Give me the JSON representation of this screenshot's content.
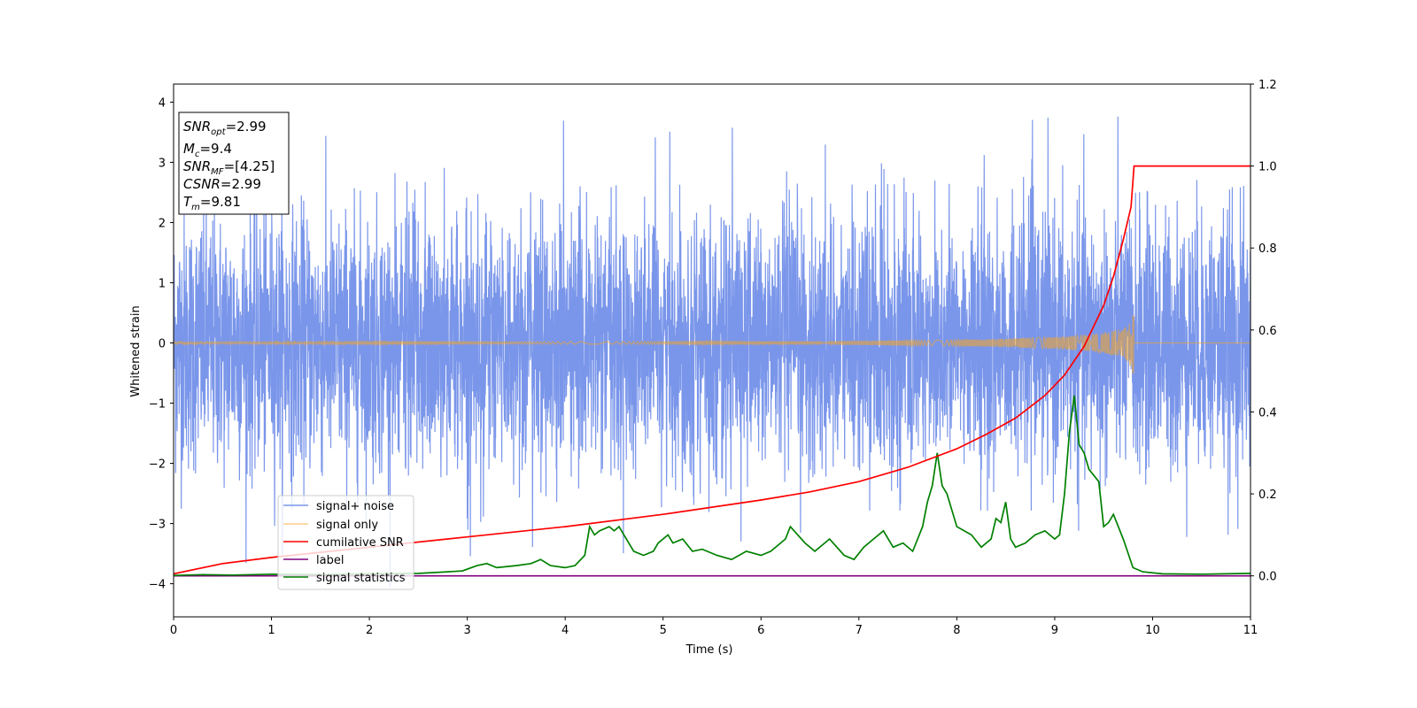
{
  "chart_data": {
    "type": "line",
    "title": "",
    "xlabel": "Time (s)",
    "ylabel": "Whitened strain",
    "y2label": "",
    "xlim": [
      0,
      11
    ],
    "ylim": [
      -4.55,
      4.3
    ],
    "y2lim": [
      -0.1,
      1.2
    ],
    "grid": false,
    "legend_position": "lower-left",
    "x_ticks": [
      "0",
      "1",
      "2",
      "3",
      "4",
      "5",
      "6",
      "7",
      "8",
      "9",
      "10",
      "11"
    ],
    "y_ticks": [
      "−4",
      "−3",
      "−2",
      "−1",
      "0",
      "1",
      "2",
      "3",
      "4"
    ],
    "y2_ticks": [
      "0.0",
      "0.2",
      "0.4",
      "0.6",
      "0.8",
      "1.0",
      "1.2"
    ],
    "annotation": {
      "snr_opt": "=2.99",
      "mc": "=9.4",
      "snr_mf": "=[4.25]",
      "csnr": "=2.99",
      "tm": "=9.81"
    },
    "series": [
      {
        "name": "signal+ noise",
        "axis": "left",
        "color": "#4169e1",
        "description_values": {
          "x_range": [
            0,
            11
          ],
          "y_typical_range": [
            -2,
            2.2
          ],
          "y_max": 3.92,
          "y_min": -4.18
        }
      },
      {
        "name": "signal only",
        "axis": "left",
        "color": "#f5a623",
        "x": [
          0,
          2,
          4,
          6,
          7,
          8,
          8.5,
          9,
          9.3,
          9.5,
          9.65,
          9.75,
          9.81,
          11
        ],
        "amplitude": [
          0.01,
          0.015,
          0.02,
          0.025,
          0.035,
          0.05,
          0.07,
          0.1,
          0.13,
          0.17,
          0.22,
          0.3,
          0.55,
          0
        ]
      },
      {
        "name": "cumilative SNR",
        "axis": "right",
        "color": "#ff0000",
        "x": [
          0,
          0.5,
          1,
          2,
          3,
          4,
          5,
          6,
          6.5,
          7,
          7.5,
          8,
          8.3,
          8.6,
          8.9,
          9.1,
          9.3,
          9.5,
          9.6,
          9.7,
          9.78,
          9.81,
          11
        ],
        "values": [
          0.005,
          0.03,
          0.045,
          0.07,
          0.095,
          0.12,
          0.15,
          0.185,
          0.205,
          0.23,
          0.265,
          0.31,
          0.345,
          0.385,
          0.44,
          0.49,
          0.56,
          0.66,
          0.73,
          0.82,
          0.9,
          1.0,
          1.0
        ]
      },
      {
        "name": "label",
        "axis": "right",
        "color": "#800080",
        "x": [
          0,
          11
        ],
        "values": [
          0,
          0
        ]
      },
      {
        "name": "signal statistics",
        "axis": "right",
        "color": "#008000",
        "x": [
          0,
          0.3,
          0.6,
          1,
          1.5,
          2,
          2.5,
          2.8,
          2.95,
          3.1,
          3.2,
          3.3,
          3.5,
          3.65,
          3.75,
          3.85,
          4,
          4.1,
          4.2,
          4.25,
          4.3,
          4.35,
          4.45,
          4.5,
          4.55,
          4.6,
          4.7,
          4.8,
          4.9,
          4.95,
          5.05,
          5.1,
          5.2,
          5.3,
          5.4,
          5.55,
          5.7,
          5.85,
          6,
          6.1,
          6.25,
          6.3,
          6.45,
          6.55,
          6.7,
          6.85,
          6.95,
          7.05,
          7.15,
          7.25,
          7.35,
          7.45,
          7.55,
          7.65,
          7.7,
          7.75,
          7.8,
          7.85,
          7.9,
          8,
          8.15,
          8.25,
          8.35,
          8.4,
          8.45,
          8.5,
          8.55,
          8.6,
          8.7,
          8.8,
          8.9,
          9,
          9.05,
          9.1,
          9.15,
          9.2,
          9.25,
          9.3,
          9.35,
          9.45,
          9.5,
          9.55,
          9.6,
          9.7,
          9.8,
          9.9,
          10.1,
          10.5,
          11
        ],
        "values": [
          0.001,
          0.003,
          0.002,
          0.004,
          0.003,
          0.005,
          0.006,
          0.01,
          0.012,
          0.025,
          0.03,
          0.02,
          0.025,
          0.03,
          0.04,
          0.025,
          0.02,
          0.025,
          0.05,
          0.12,
          0.1,
          0.11,
          0.12,
          0.11,
          0.12,
          0.1,
          0.06,
          0.05,
          0.06,
          0.08,
          0.1,
          0.08,
          0.09,
          0.06,
          0.065,
          0.05,
          0.04,
          0.06,
          0.05,
          0.06,
          0.09,
          0.12,
          0.08,
          0.06,
          0.09,
          0.05,
          0.04,
          0.07,
          0.09,
          0.11,
          0.07,
          0.08,
          0.06,
          0.12,
          0.18,
          0.22,
          0.3,
          0.22,
          0.2,
          0.12,
          0.1,
          0.07,
          0.09,
          0.14,
          0.13,
          0.18,
          0.09,
          0.07,
          0.08,
          0.1,
          0.11,
          0.09,
          0.1,
          0.2,
          0.35,
          0.44,
          0.32,
          0.3,
          0.26,
          0.23,
          0.12,
          0.13,
          0.15,
          0.09,
          0.02,
          0.01,
          0.005,
          0.004,
          0.006
        ]
      }
    ]
  }
}
